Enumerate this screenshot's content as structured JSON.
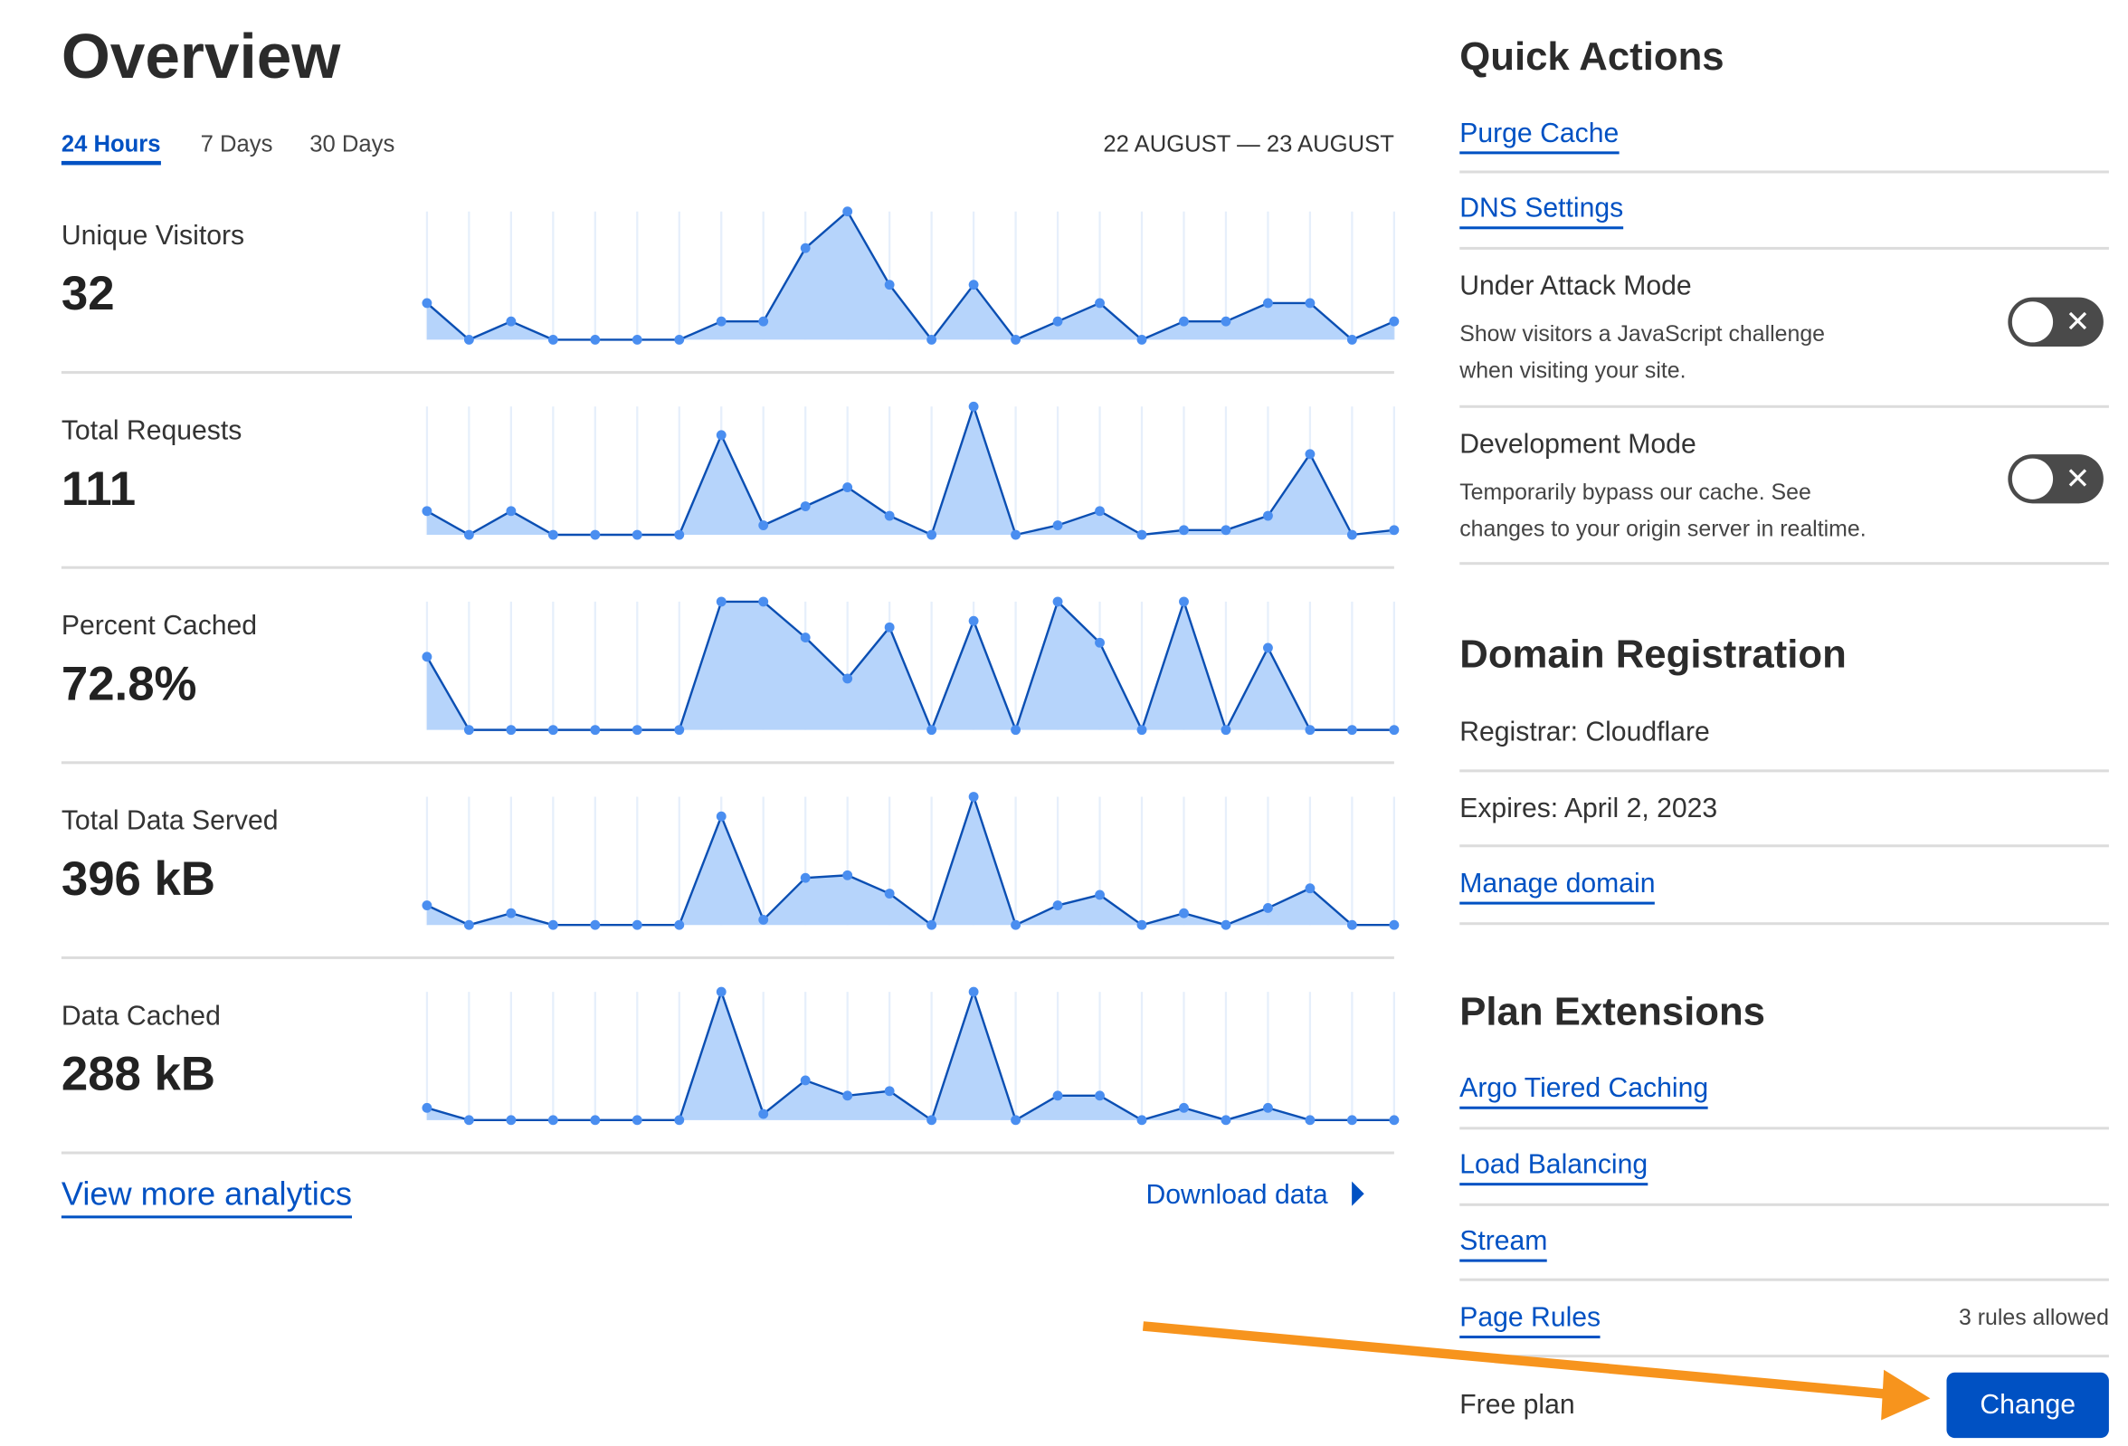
{
  "overview": {
    "title": "Overview",
    "tabs": [
      {
        "label": "24 Hours",
        "active": true
      },
      {
        "label": "7 Days",
        "active": false
      },
      {
        "label": "30 Days",
        "active": false
      }
    ],
    "date_range": "22 AUGUST — 23 AUGUST",
    "metrics": [
      {
        "label": "Unique Visitors",
        "value": "32"
      },
      {
        "label": "Total Requests",
        "value": "111"
      },
      {
        "label": "Percent Cached",
        "value": "72.8%"
      },
      {
        "label": "Total Data Served",
        "value": "396 kB"
      },
      {
        "label": "Data Cached",
        "value": "288 kB"
      }
    ],
    "view_more_label": "View more analytics",
    "download_label": "Download data"
  },
  "chart_data": [
    {
      "type": "area",
      "series": [
        {
          "values": [
            2,
            0,
            1,
            0,
            0,
            0,
            0,
            1,
            1,
            5,
            7,
            3,
            0,
            3,
            0,
            1,
            2,
            0,
            1,
            1,
            2,
            2,
            0,
            1
          ]
        }
      ],
      "grid": "vertical"
    },
    {
      "type": "area",
      "series": [
        {
          "values": [
            5,
            0,
            5,
            0,
            0,
            0,
            0,
            21,
            2,
            6,
            10,
            4,
            0,
            27,
            0,
            2,
            5,
            0,
            1,
            1,
            4,
            17,
            0,
            1
          ]
        }
      ],
      "grid": "vertical"
    },
    {
      "type": "area",
      "series": [
        {
          "values": [
            57,
            0,
            0,
            0,
            0,
            0,
            0,
            100,
            100,
            72,
            40,
            80,
            0,
            85,
            0,
            100,
            68,
            0,
            100,
            0,
            64,
            0,
            0,
            0
          ]
        }
      ],
      "grid": "vertical"
    },
    {
      "type": "area",
      "series": [
        {
          "values": [
            15,
            0,
            9,
            0,
            0,
            0,
            0,
            83,
            4,
            36,
            38,
            24,
            0,
            98,
            0,
            15,
            23,
            0,
            9,
            0,
            13,
            28,
            0,
            0
          ]
        }
      ],
      "grid": "vertical"
    },
    {
      "type": "area",
      "series": [
        {
          "values": [
            8,
            0,
            0,
            0,
            0,
            0,
            0,
            84,
            4,
            26,
            16,
            19,
            0,
            84,
            0,
            16,
            16,
            0,
            8,
            0,
            8,
            0,
            0,
            0
          ]
        }
      ],
      "grid": "vertical"
    }
  ],
  "quick_actions": {
    "title": "Quick Actions",
    "links": [
      "Purge Cache",
      "DNS Settings"
    ],
    "toggles": [
      {
        "title": "Under Attack Mode",
        "desc1": "Show visitors a JavaScript challenge",
        "desc2": "when visiting your site.",
        "on": false
      },
      {
        "title": "Development Mode",
        "desc1": "Temporarily bypass our cache. See",
        "desc2": "changes to your origin server in realtime.",
        "on": false
      }
    ]
  },
  "domain": {
    "title": "Domain Registration",
    "registrar": "Registrar: Cloudflare",
    "expires": "Expires: April 2, 2023",
    "manage_label": "Manage domain"
  },
  "plan": {
    "title": "Plan Extensions",
    "links": [
      "Argo Tiered Caching",
      "Load Balancing",
      "Stream",
      "Page Rules"
    ],
    "page_rules_note": "3 rules allowed",
    "plan_name": "Free plan",
    "change_label": "Change"
  },
  "colors": {
    "accent": "#0051c3",
    "chart_fill": "#b6d4fb",
    "chart_line": "#0b4fb3",
    "chart_dot": "#4a8ef0",
    "annotation_arrow": "#f7941d"
  }
}
